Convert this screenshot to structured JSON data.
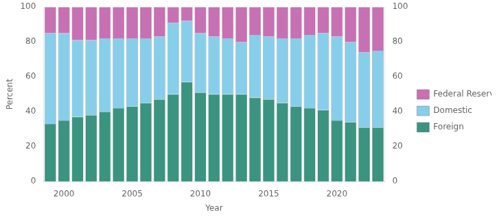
{
  "chart_data": {
    "type": "bar",
    "stacked": true,
    "categories": [
      null,
      2000,
      null,
      null,
      null,
      null,
      2005,
      null,
      null,
      null,
      null,
      2010,
      null,
      null,
      null,
      null,
      2015,
      null,
      null,
      null,
      null,
      2020,
      null,
      null,
      null
    ],
    "series": [
      {
        "name": "Foreign",
        "color": "#3a9480",
        "values": [
          33,
          35,
          37,
          38,
          40,
          42,
          43,
          45,
          47,
          50,
          57,
          51,
          50,
          50,
          50,
          48,
          47,
          45,
          43,
          42,
          41,
          35,
          34,
          31,
          31
        ]
      },
      {
        "name": "Domestic",
        "color": "#87ceeb",
        "values": [
          52,
          50,
          44,
          43,
          42,
          40,
          39,
          37,
          36,
          41,
          35,
          34,
          33,
          32,
          30,
          36,
          36,
          37,
          39,
          42,
          44,
          48,
          46,
          43,
          44
        ]
      },
      {
        "name": "Federal Reserve",
        "color": "#c870b4",
        "values": [
          15,
          15,
          19,
          19,
          18,
          18,
          18,
          18,
          17,
          9,
          8,
          15,
          17,
          18,
          20,
          16,
          17,
          18,
          18,
          16,
          15,
          17,
          20,
          26,
          25
        ]
      }
    ],
    "xlabel": "Year",
    "ylabel": "Percent",
    "ylim": [
      0,
      100
    ],
    "yticks": [
      0,
      20,
      40,
      60,
      80,
      100
    ],
    "y2lim": [
      0,
      100
    ],
    "y2ticks": [
      0,
      20,
      40,
      60,
      80,
      100
    ],
    "grid": false,
    "legend": "right"
  }
}
